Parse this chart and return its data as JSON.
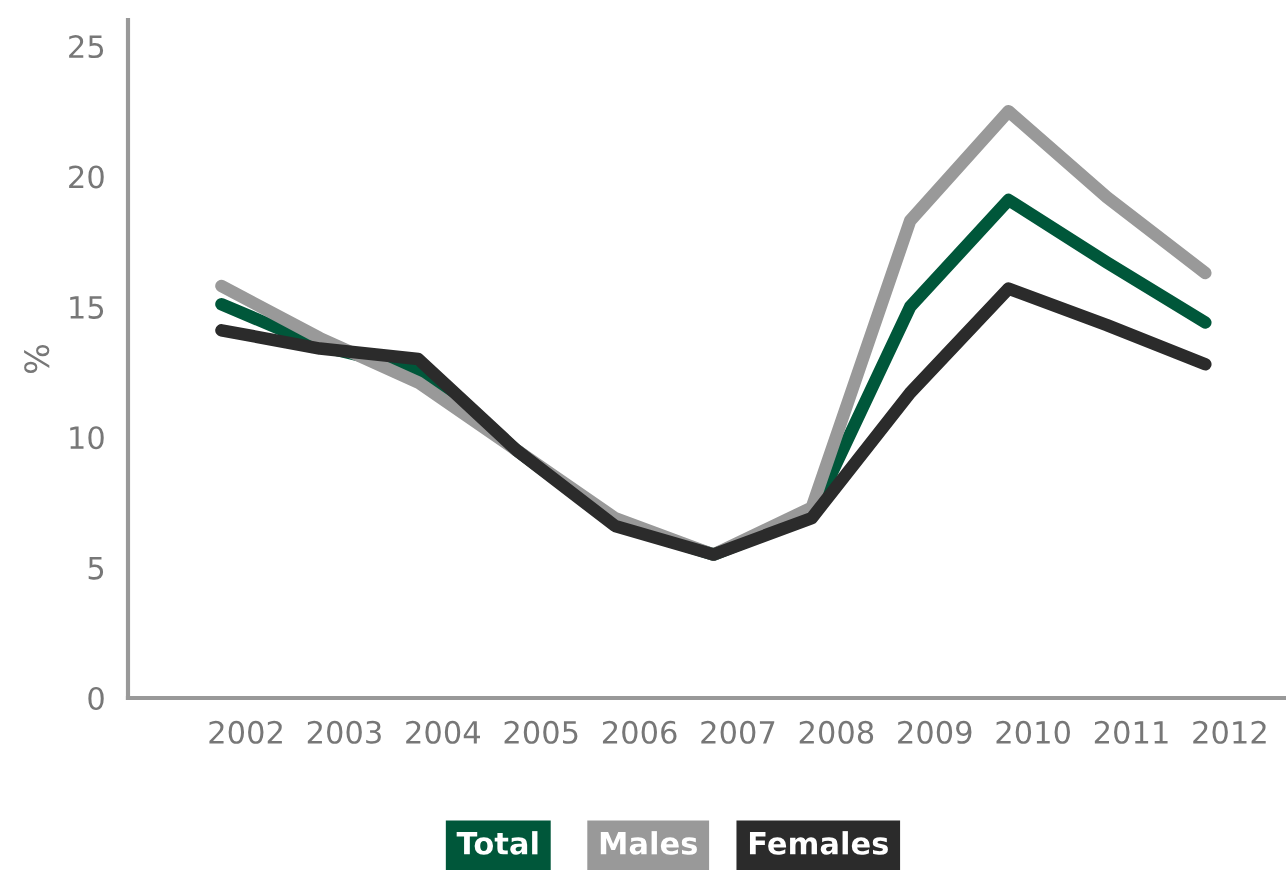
{
  "chart_data": {
    "type": "line",
    "ylabel": "%",
    "categories": [
      "2002",
      "2003",
      "2004",
      "2005",
      "2006",
      "2007",
      "2008",
      "2009",
      "2010",
      "2011",
      "2012"
    ],
    "series": [
      {
        "name": "Total",
        "color": "#00573a",
        "values": [
          15.1,
          13.5,
          12.6,
          9.5,
          6.7,
          5.5,
          7.0,
          15.0,
          19.1,
          16.7,
          14.4
        ]
      },
      {
        "name": "Males",
        "color": "#999999",
        "values": [
          15.8,
          13.8,
          12.1,
          9.5,
          6.9,
          5.5,
          7.3,
          18.3,
          22.5,
          19.2,
          16.3
        ]
      },
      {
        "name": "Females",
        "color": "#2b2b2b",
        "values": [
          14.1,
          13.4,
          13.0,
          9.5,
          6.6,
          5.5,
          6.9,
          11.7,
          15.7,
          14.3,
          12.8
        ]
      }
    ],
    "ylim": [
      0,
      26
    ],
    "yticks": [
      0,
      5,
      10,
      15,
      20,
      25
    ],
    "grid": false,
    "legend": "bottom",
    "marker": "none",
    "line_style": "solid"
  }
}
